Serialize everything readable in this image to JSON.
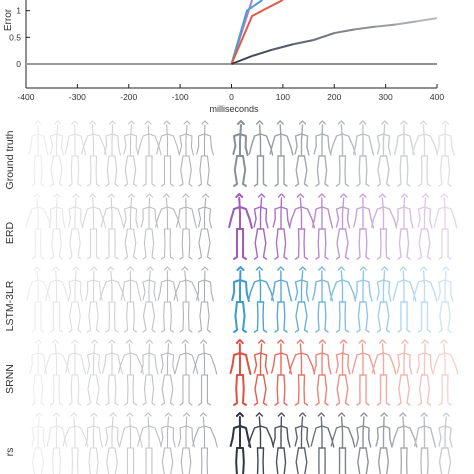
{
  "chart_data": {
    "type": "line",
    "title": "",
    "xlabel": "milliseconds",
    "ylabel": "Error",
    "xlim": [
      -400,
      400
    ],
    "ylim": [
      -0.45,
      1.2
    ],
    "xticks": [
      -400,
      -300,
      -200,
      -100,
      0,
      100,
      200,
      300,
      400
    ],
    "yticks": [
      0,
      0.5,
      1
    ],
    "ytick_labels": [
      "0",
      "0.5",
      "1"
    ],
    "grid": false,
    "series": [
      {
        "color": "#9a9a9a",
        "x": [
          -400,
          0
        ],
        "y": [
          0,
          0
        ]
      },
      {
        "color": "#b07cc6",
        "x": [
          0,
          40
        ],
        "y": [
          0,
          1.2
        ]
      },
      {
        "color": "#4a9fd4",
        "x": [
          0,
          30,
          60
        ],
        "y": [
          0,
          1.0,
          1.2
        ]
      },
      {
        "color": "#e05a48",
        "x": [
          0,
          40,
          80,
          100
        ],
        "y": [
          0,
          0.9,
          1.1,
          1.2
        ]
      },
      {
        "color": "#3a3f4a",
        "x": [
          0,
          40,
          80,
          120,
          160,
          200,
          240,
          280,
          320,
          360,
          400
        ],
        "y": [
          0,
          0.15,
          0.27,
          0.37,
          0.45,
          0.58,
          0.65,
          0.7,
          0.74,
          0.8,
          0.86
        ]
      }
    ]
  },
  "rows": [
    {
      "label": "Ground truth",
      "predColor": "#8a9097"
    },
    {
      "label": "ERD",
      "predColor": "#a05ab8"
    },
    {
      "label": "LSTM-3LR",
      "predColor": "#3d9ad3"
    },
    {
      "label": "SRNN",
      "predColor": "#e05040"
    },
    {
      "label": "rs",
      "predColor": "#2f3542"
    }
  ],
  "figures_per_row": {
    "past": 10,
    "future": 11
  }
}
